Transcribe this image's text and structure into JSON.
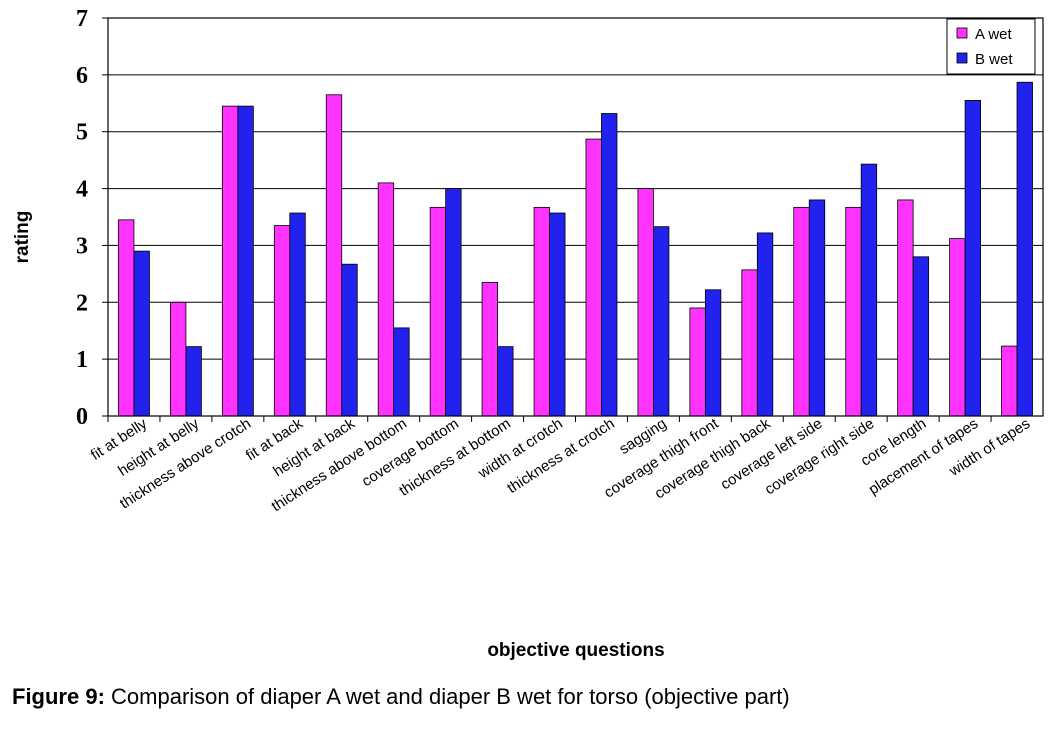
{
  "caption": {
    "label": "Figure 9:",
    "text": "Comparison of  diaper A wet and diaper B wet for torso (objective part)"
  },
  "chart_data": {
    "type": "bar",
    "xlabel": "objective questions",
    "ylabel": "rating",
    "ylim": [
      0,
      7
    ],
    "yticks": [
      0,
      1,
      2,
      3,
      4,
      5,
      6,
      7
    ],
    "grid": true,
    "legend_position": "top-right",
    "categories": [
      "fit at belly",
      "height at belly",
      "thickness above crotch",
      "fit at back",
      "height at back",
      "thickness above bottom",
      "coverage bottom",
      "thickness at bottom",
      "width at crotch",
      "thickness at crotch",
      "sagging",
      "coverage thigh front",
      "coverage thigh back",
      "coverage left side",
      "coverage right side",
      "core length",
      "placement of tapes",
      "width of tapes"
    ],
    "series": [
      {
        "name": "A wet",
        "color": "#ff33ff",
        "values": [
          3.45,
          2.0,
          5.45,
          3.35,
          5.65,
          4.1,
          3.67,
          2.35,
          3.67,
          4.87,
          4.0,
          1.9,
          2.57,
          3.67,
          3.67,
          3.8,
          3.12,
          1.23
        ]
      },
      {
        "name": "B wet",
        "color": "#2222ee",
        "values": [
          2.9,
          1.22,
          5.45,
          3.57,
          2.67,
          1.55,
          4.0,
          1.22,
          3.57,
          5.32,
          3.33,
          2.22,
          3.22,
          3.8,
          4.43,
          2.8,
          5.55,
          5.87
        ]
      }
    ]
  }
}
